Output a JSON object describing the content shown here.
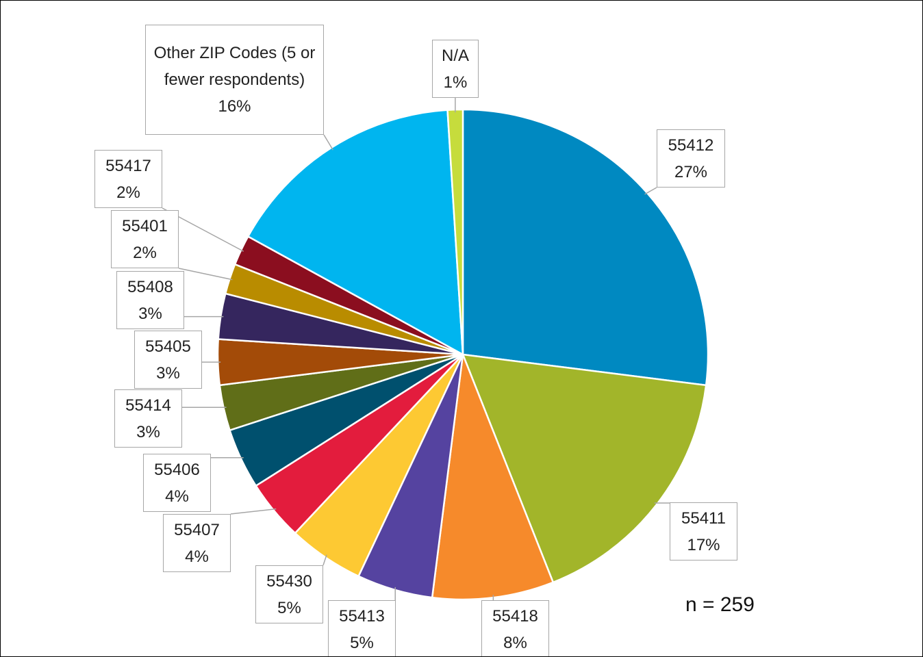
{
  "chart_data": {
    "type": "pie",
    "categories": [
      "55412",
      "55411",
      "55418",
      "55413",
      "55430",
      "55407",
      "55406",
      "55414",
      "55405",
      "55408",
      "55401",
      "55417",
      "Other ZIP Codes (5 or fewer respondents)",
      "N/A"
    ],
    "values": [
      27,
      17,
      8,
      5,
      5,
      4,
      4,
      3,
      3,
      3,
      2,
      2,
      16,
      1
    ],
    "value_labels": [
      "27%",
      "17%",
      "8%",
      "5%",
      "5%",
      "4%",
      "4%",
      "3%",
      "3%",
      "3%",
      "2%",
      "2%",
      "16%",
      "1%"
    ],
    "colors": [
      "#0089c1",
      "#a2b52a",
      "#f68a2b",
      "#5543a0",
      "#fdc933",
      "#e31c3d",
      "#00506e",
      "#606e18",
      "#a34b08",
      "#35265e",
      "#b98c00",
      "#8b0e1f",
      "#00b5ef",
      "#c6dc3c"
    ],
    "annotation": "n = 259"
  }
}
